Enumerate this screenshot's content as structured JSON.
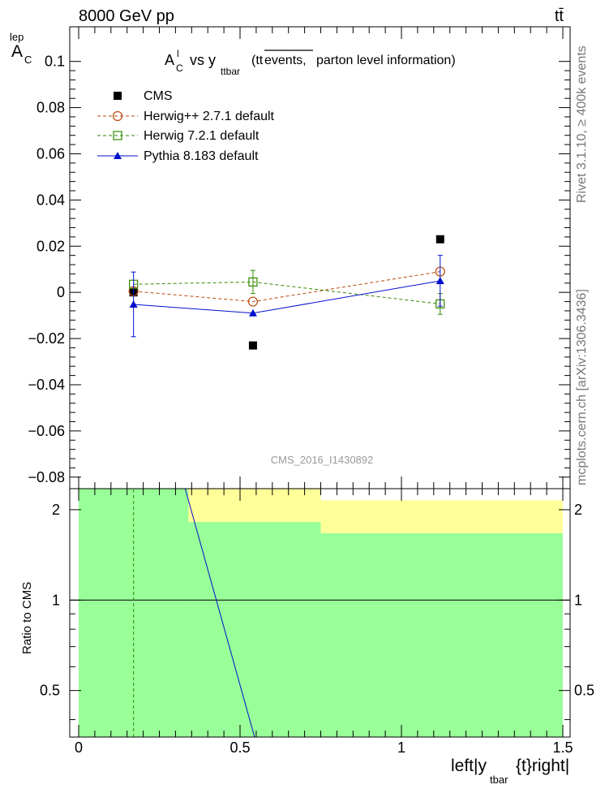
{
  "header": {
    "energy_label": "8000 GeV pp",
    "process_label": "tt̄"
  },
  "side_labels": {
    "rivet": "Rivet 3.1.10, ≥ 400k events",
    "mcplots": "mcplots.cern.ch [arXiv:1306.3436]"
  },
  "chart_data": [
    {
      "type": "scatter",
      "panel": "main",
      "title_parts": {
        "a": "A",
        "a_sup": "l",
        "a_sub": "C",
        "vs": "vs y",
        "y_sub": "ttbar",
        "paren_open": "(tt",
        "overline": "events,",
        "rest": "parton level information)"
      },
      "ylabel_parts": {
        "base": "A",
        "sup": "lep",
        "sub": "C"
      },
      "watermark": "CMS_2016_I1430892",
      "xlim": [
        0,
        1.5
      ],
      "ylim": [
        -0.085,
        0.115
      ],
      "y_ticks": [
        -0.08,
        -0.06,
        -0.04,
        -0.02,
        0,
        0.02,
        0.04,
        0.06,
        0.08,
        0.1
      ],
      "y_tick_labels": [
        "−0.08",
        "−0.06",
        "−0.04",
        "−0.02",
        "0",
        "0.02",
        "0.04",
        "0.06",
        "0.08",
        "0.1"
      ],
      "x": [
        0.17,
        0.54,
        1.12
      ],
      "series": [
        {
          "name": "CMS",
          "marker": "filled-square",
          "color": "#000000",
          "values": [
            0.0,
            -0.023,
            0.023
          ],
          "errors": [
            0.0,
            0.0,
            0.0
          ]
        },
        {
          "name": "Herwig++ 2.7.1 default",
          "marker": "open-circle",
          "color": "#b94a0b",
          "line": "dashed",
          "values": [
            0.0005,
            -0.004,
            0.009
          ],
          "errors": [
            0.0,
            0.0,
            0.0
          ]
        },
        {
          "name": "Herwig 7.2.1 default",
          "marker": "open-square",
          "color": "#338a00",
          "line": "dashed",
          "values": [
            0.0035,
            0.0045,
            -0.005
          ],
          "errors": [
            0.0,
            0.005,
            0.0045
          ]
        },
        {
          "name": "Pythia 8.183 default",
          "marker": "filled-triangle",
          "color": "#0010d0",
          "line": "solid",
          "values": [
            -0.0052,
            -0.009,
            0.005
          ],
          "errors": [
            0.014,
            0.0,
            0.011
          ]
        }
      ]
    },
    {
      "type": "line",
      "panel": "ratio",
      "ylabel": "Ratio to CMS",
      "xlabel_parts": {
        "a": "left|y",
        "sub": "tbar",
        "b": "{t}right|"
      },
      "xlim": [
        0,
        1.5
      ],
      "ylim": [
        0.35,
        2.35
      ],
      "y_scale": "log",
      "x_ticks": [
        0,
        0.5,
        1,
        1.5
      ],
      "x_tick_labels": [
        "0",
        "0.5",
        "1",
        "1.5"
      ],
      "y_ticks": [
        0.5,
        1,
        2
      ],
      "y_tick_labels": [
        "0.5",
        "1",
        "2"
      ],
      "reference_line": 1,
      "green_band": [
        {
          "x0": 0,
          "x1": 0.34,
          "lo": 0.35,
          "hi": 2.35
        },
        {
          "x0": 0.34,
          "x1": 0.75,
          "lo": 0.35,
          "hi": 1.82
        },
        {
          "x0": 0.75,
          "x1": 1.5,
          "lo": 0.35,
          "hi": 1.67
        }
      ],
      "yellow_band": [
        {
          "x0": 0,
          "x1": 0.34,
          "lo": 0.35,
          "hi": 2.35
        },
        {
          "x0": 0.34,
          "x1": 0.75,
          "lo": 0.35,
          "hi": 2.35
        },
        {
          "x0": 0.75,
          "x1": 1.5,
          "lo": 0.35,
          "hi": 2.15
        }
      ],
      "series": [
        {
          "name": "Herwig 7.2.1 default",
          "color": "#338a00",
          "line": "dashed",
          "points": [
            [
              0.17,
              0.35
            ],
            [
              0.17,
              2.35
            ]
          ]
        },
        {
          "name": "Pythia 8.183 default",
          "color": "#0010d0",
          "line": "solid",
          "points": [
            [
              0.33,
              2.35
            ],
            [
              0.545,
              0.35
            ]
          ]
        }
      ]
    }
  ]
}
